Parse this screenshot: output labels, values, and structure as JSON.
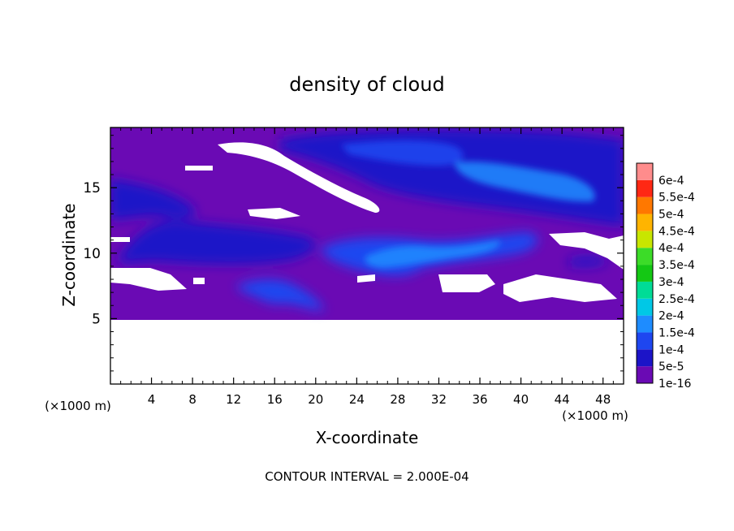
{
  "chart_data": {
    "type": "heatmap",
    "title": "density of cloud",
    "xlabel": "X-coordinate",
    "ylabel": "Z-coordinate",
    "x_unit": "(×1000 m)",
    "y_unit": "(×1000 m)",
    "xlim": [
      0,
      50
    ],
    "ylim": [
      0,
      19.6
    ],
    "x_ticks": [
      4,
      8,
      12,
      16,
      20,
      24,
      28,
      32,
      36,
      40,
      44,
      48
    ],
    "y_ticks": [
      5,
      10,
      15
    ],
    "footer": "CONTOUR INTERVAL = 2.000E-04",
    "colorbar": {
      "labels": [
        "1e-16",
        "5e-5",
        "1e-4",
        "1.5e-4",
        "2e-4",
        "2.5e-4",
        "3e-4",
        "3.5e-4",
        "4e-4",
        "4.5e-4",
        "5e-4",
        "5.5e-4",
        "6e-4"
      ],
      "colors": [
        "#6a0ab4",
        "#1c14c8",
        "#1e46f0",
        "#1e8cff",
        "#00c8e6",
        "#00dc96",
        "#14c814",
        "#3cdc28",
        "#c8e600",
        "#ffb400",
        "#ff7800",
        "#ff2814",
        "#ff8c8c"
      ]
    },
    "field_regions": [
      {
        "level": "1e-16",
        "x": [
          0,
          50
        ],
        "z": [
          5,
          19.6
        ]
      },
      {
        "level": "5e-5",
        "x": [
          0,
          8
        ],
        "z": [
          12.5,
          15.8
        ]
      },
      {
        "level": "5e-5",
        "x": [
          2,
          30
        ],
        "z": [
          9.6,
          12.1
        ]
      },
      {
        "level": "5e-5",
        "x": [
          17,
          50
        ],
        "z": [
          13,
          18.8
        ]
      },
      {
        "level": "1e-4",
        "x": [
          21,
          41
        ],
        "z": [
          8.1,
          11.4
        ]
      },
      {
        "level": "1e-4",
        "x": [
          12,
          21
        ],
        "z": [
          5.6,
          7.8
        ]
      },
      {
        "level": "1.5e-4",
        "x": [
          26,
          38
        ],
        "z": [
          9.2,
          10.6
        ]
      },
      {
        "level": "1.5e-4",
        "x": [
          32,
          48
        ],
        "z": [
          14.4,
          17.6
        ]
      }
    ]
  }
}
